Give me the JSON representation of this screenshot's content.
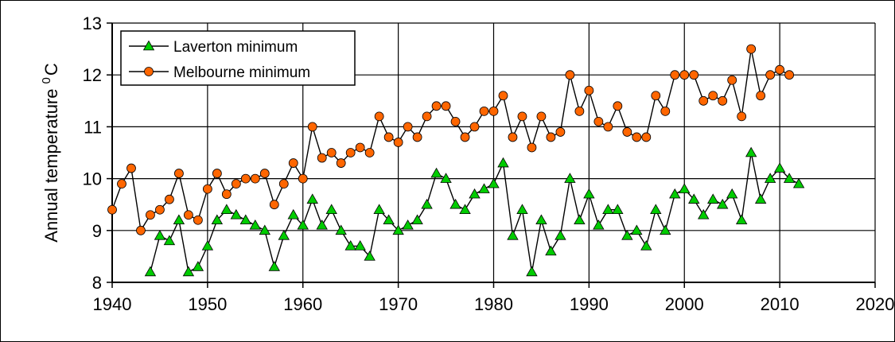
{
  "chart_data": {
    "type": "line",
    "title": "",
    "xlabel": "",
    "ylabel": "Annual temperature",
    "ylabel_unit_superscript": "0",
    "ylabel_unit": "C",
    "xlim": [
      1940,
      2020
    ],
    "ylim": [
      8,
      13
    ],
    "x_ticks": [
      "1940",
      "1950",
      "1960",
      "1970",
      "1980",
      "1990",
      "2000",
      "2010",
      "2020"
    ],
    "y_ticks": [
      "8",
      "9",
      "10",
      "11",
      "12",
      "13"
    ],
    "grid": "vertical and horizontal major gridlines",
    "legend_position": "top-left",
    "series": [
      {
        "name": "Laverton minimum",
        "color": "#00cc00",
        "marker": "triangle",
        "x": [
          1944,
          1945,
          1946,
          1947,
          1948,
          1949,
          1950,
          1951,
          1952,
          1953,
          1954,
          1955,
          1956,
          1957,
          1958,
          1959,
          1960,
          1961,
          1962,
          1963,
          1964,
          1965,
          1966,
          1967,
          1968,
          1969,
          1970,
          1971,
          1972,
          1973,
          1974,
          1975,
          1976,
          1977,
          1978,
          1979,
          1980,
          1981,
          1982,
          1983,
          1984,
          1985,
          1986,
          1987,
          1988,
          1989,
          1990,
          1991,
          1992,
          1993,
          1994,
          1995,
          1996,
          1997,
          1998,
          1999,
          2000,
          2001,
          2002,
          2003,
          2004,
          2005,
          2006,
          2007,
          2008,
          2009,
          2010,
          2011,
          2012
        ],
        "y": [
          8.2,
          8.9,
          8.8,
          9.2,
          8.2,
          8.3,
          8.7,
          9.2,
          9.4,
          9.3,
          9.2,
          9.1,
          9.0,
          8.3,
          8.9,
          9.3,
          9.1,
          9.6,
          9.1,
          9.4,
          9.0,
          8.7,
          8.7,
          8.5,
          9.4,
          9.2,
          9.0,
          9.1,
          9.2,
          9.5,
          10.1,
          10.0,
          9.5,
          9.4,
          9.7,
          9.8,
          9.9,
          10.3,
          8.9,
          9.4,
          8.2,
          9.2,
          8.6,
          8.9,
          10.0,
          9.2,
          9.7,
          9.1,
          9.4,
          9.4,
          8.9,
          9.0,
          8.7,
          9.4,
          9.0,
          9.7,
          9.8,
          9.6,
          9.3,
          9.6,
          9.5,
          9.7,
          9.2,
          10.5,
          9.6,
          10.0,
          10.2,
          10.0,
          9.9
        ]
      },
      {
        "name": "Melbourne minimum",
        "color": "#ff6600",
        "marker": "circle",
        "x": [
          1940,
          1941,
          1942,
          1943,
          1944,
          1945,
          1946,
          1947,
          1948,
          1949,
          1950,
          1951,
          1952,
          1953,
          1954,
          1955,
          1956,
          1957,
          1958,
          1959,
          1960,
          1961,
          1962,
          1963,
          1964,
          1965,
          1966,
          1967,
          1968,
          1969,
          1970,
          1971,
          1972,
          1973,
          1974,
          1975,
          1976,
          1977,
          1978,
          1979,
          1980,
          1981,
          1982,
          1983,
          1984,
          1985,
          1986,
          1987,
          1988,
          1989,
          1990,
          1991,
          1992,
          1993,
          1994,
          1995,
          1996,
          1997,
          1998,
          1999,
          2000,
          2001,
          2002,
          2003,
          2004,
          2005,
          2006,
          2007,
          2008,
          2009,
          2010,
          2011
        ],
        "y": [
          9.4,
          9.9,
          10.2,
          9.0,
          9.3,
          9.4,
          9.6,
          10.1,
          9.3,
          9.2,
          9.8,
          10.1,
          9.7,
          9.9,
          10.0,
          10.0,
          10.1,
          9.5,
          9.9,
          10.3,
          10.0,
          11.0,
          10.4,
          10.5,
          10.3,
          10.5,
          10.6,
          10.5,
          11.2,
          10.8,
          10.7,
          11.0,
          10.8,
          11.2,
          11.4,
          11.4,
          11.1,
          10.8,
          11.0,
          11.3,
          11.3,
          11.6,
          10.8,
          11.2,
          10.6,
          11.2,
          10.8,
          10.9,
          12.0,
          11.3,
          11.7,
          11.1,
          11.0,
          11.4,
          10.9,
          10.8,
          10.8,
          11.6,
          11.3,
          12.0,
          12.0,
          12.0,
          11.5,
          11.6,
          11.5,
          11.9,
          11.2,
          12.5,
          11.6,
          12.0,
          12.1,
          12.0
        ]
      }
    ]
  }
}
